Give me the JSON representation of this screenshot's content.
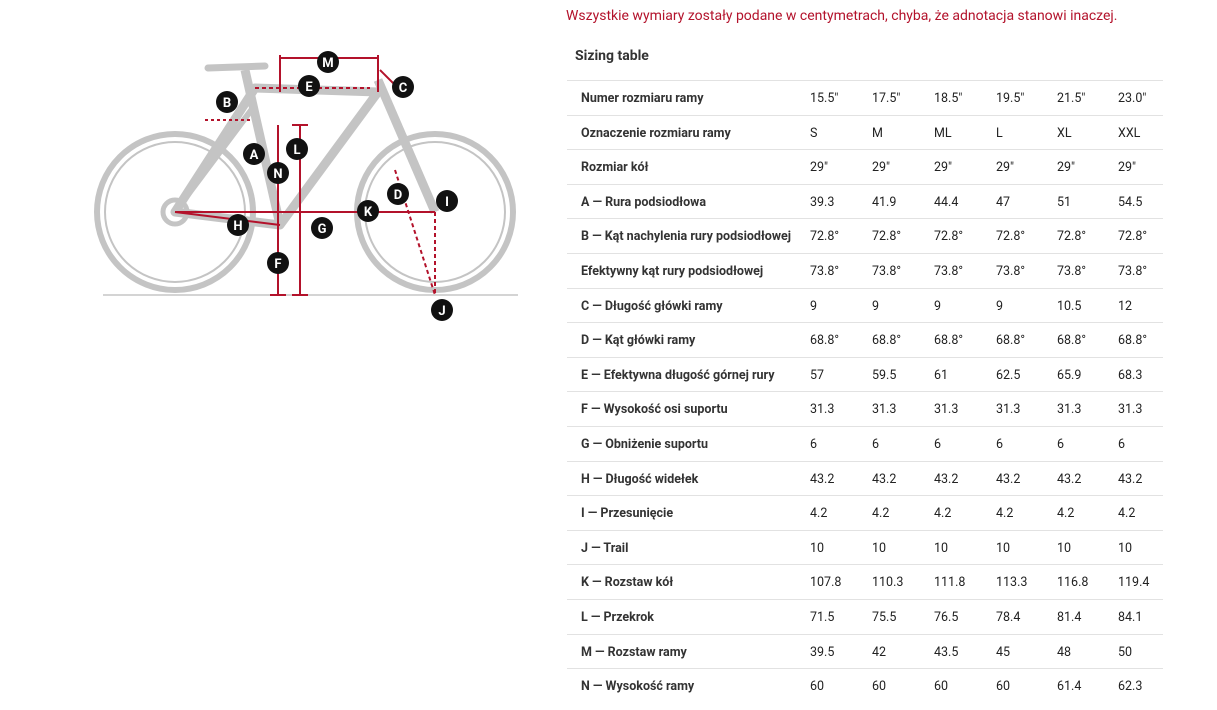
{
  "notice": "Wszystkie wymiary zostały podane w centymetrach, chyba, że adnotacja stanowi inaczej.",
  "diagram": {
    "labels": [
      "M",
      "E",
      "C",
      "B",
      "A",
      "L",
      "N",
      "D",
      "I",
      "H",
      "K",
      "G",
      "F",
      "J"
    ]
  },
  "table": {
    "caption": "Sizing table",
    "rows": [
      [
        "Numer rozmiaru ramy",
        "15.5\"",
        "17.5\"",
        "18.5\"",
        "19.5\"",
        "21.5\"",
        "23.0\""
      ],
      [
        "Oznaczenie rozmiaru ramy",
        "S",
        "M",
        "ML",
        "L",
        "XL",
        "XXL"
      ],
      [
        "Rozmiar kół",
        "29\"",
        "29\"",
        "29\"",
        "29\"",
        "29\"",
        "29\""
      ],
      [
        "A — Rura podsiodłowa",
        "39.3",
        "41.9",
        "44.4",
        "47",
        "51",
        "54.5"
      ],
      [
        "B — Kąt nachylenia rury podsiodłowej",
        "72.8°",
        "72.8°",
        "72.8°",
        "72.8°",
        "72.8°",
        "72.8°"
      ],
      [
        "Efektywny kąt rury podsiodłowej",
        "73.8°",
        "73.8°",
        "73.8°",
        "73.8°",
        "73.8°",
        "73.8°"
      ],
      [
        "C — Długość główki ramy",
        "9",
        "9",
        "9",
        "9",
        "10.5",
        "12"
      ],
      [
        "D — Kąt główki ramy",
        "68.8°",
        "68.8°",
        "68.8°",
        "68.8°",
        "68.8°",
        "68.8°"
      ],
      [
        "E — Efektywna długość górnej rury",
        "57",
        "59.5",
        "61",
        "62.5",
        "65.9",
        "68.3"
      ],
      [
        "F — Wysokość osi suportu",
        "31.3",
        "31.3",
        "31.3",
        "31.3",
        "31.3",
        "31.3"
      ],
      [
        "G — Obniżenie suportu",
        "6",
        "6",
        "6",
        "6",
        "6",
        "6"
      ],
      [
        "H — Długość widełek",
        "43.2",
        "43.2",
        "43.2",
        "43.2",
        "43.2",
        "43.2"
      ],
      [
        "I — Przesunięcie",
        "4.2",
        "4.2",
        "4.2",
        "4.2",
        "4.2",
        "4.2"
      ],
      [
        "J — Trail",
        "10",
        "10",
        "10",
        "10",
        "10",
        "10"
      ],
      [
        "K — Rozstaw kół",
        "107.8",
        "110.3",
        "111.8",
        "113.3",
        "116.8",
        "119.4"
      ],
      [
        "L — Przekrok",
        "71.5",
        "75.5",
        "76.5",
        "78.4",
        "81.4",
        "84.1"
      ],
      [
        "M — Rozstaw ramy",
        "39.5",
        "42",
        "43.5",
        "45",
        "48",
        "50"
      ],
      [
        "N — Wysokość ramy",
        "60",
        "60",
        "60",
        "60",
        "61.4",
        "62.3"
      ]
    ]
  }
}
